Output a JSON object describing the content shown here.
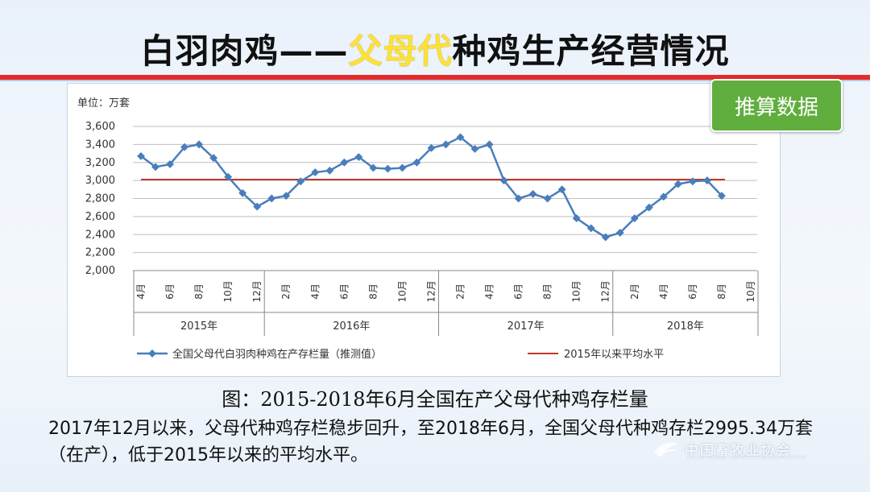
{
  "slide": {
    "title_prefix": "白羽肉鸡——",
    "title_highlight": "父母代",
    "title_suffix": "种鸡生产经营情况",
    "badge": "推算数据",
    "caption": "图：2015-2018年6月全国在产父母代种鸡存栏量",
    "paragraph": "2017年12月以来，父母代种鸡存栏稳步回升，至2018年6月，全国父母代种鸡存栏2995.34万套（在产），低于2015年以来的平均水平。",
    "watermark_zh": "中国畜牧业协会",
    "watermark_en": "CHINA ANIMAL AGRICULTURE ASSOCIATION"
  },
  "chart_data": {
    "type": "line",
    "unit_label": "单位：万套",
    "ylim": [
      2000,
      3600
    ],
    "yticks": [
      "2,000",
      "2,200",
      "2,400",
      "2,600",
      "2,800",
      "3,000",
      "3,200",
      "3,400",
      "3,600"
    ],
    "grid": true,
    "month_labels": [
      "4月",
      "6月",
      "8月",
      "10月",
      "12月",
      "2月",
      "4月",
      "6月",
      "8月",
      "10月",
      "12月",
      "2月",
      "4月",
      "6月",
      "8月",
      "10月",
      "12月",
      "2月",
      "4月",
      "6月",
      "8月",
      "10月"
    ],
    "year_labels": [
      "2015年",
      "2016年",
      "2017年",
      "2018年"
    ],
    "series": [
      {
        "name": "全国父母代白羽肉种鸡在产存栏量（推测值）",
        "color": "#4a7ebb",
        "values": [
          3270,
          3150,
          3180,
          3370,
          3400,
          3250,
          3040,
          2860,
          2710,
          2800,
          2830,
          2990,
          3090,
          3110,
          3200,
          3260,
          3140,
          3130,
          3140,
          3200,
          3360,
          3400,
          3480,
          3350,
          3400,
          3000,
          2800,
          2850,
          2800,
          2900,
          2580,
          2470,
          2370,
          2420,
          2580,
          2700,
          2820,
          2960,
          2990,
          3000,
          2830
        ]
      },
      {
        "name": "2015年以来平均水平",
        "color": "#c0392b",
        "values": [
          3010
        ]
      }
    ]
  }
}
